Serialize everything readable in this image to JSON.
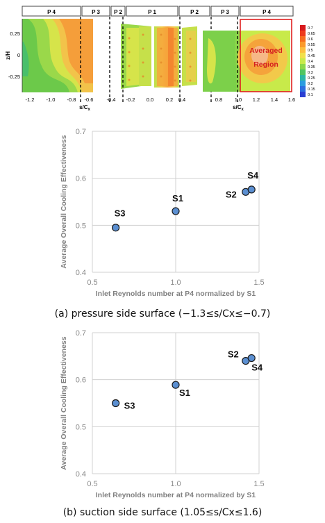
{
  "contour": {
    "passage_labels": [
      "P 4",
      "P 3",
      "P 2",
      "P 1",
      "P 2",
      "P 3",
      "P 4"
    ],
    "ylabel": "z/H",
    "xlabel": "s/C",
    "xlabel_sub": "x",
    "yticks": [
      "0.25",
      "0",
      "-0.25"
    ],
    "xticks_left": [
      "-1.2",
      "-1.0",
      "-0.8",
      "-0.6"
    ],
    "xticks_mid": [
      "-0.4",
      "-0.2",
      "0.0",
      "0.2",
      "0.4"
    ],
    "xticks_right": [
      "0.8",
      "1.0",
      "1.2",
      "1.4",
      "1.6"
    ],
    "region_label_line1": "Averaged",
    "region_label_line2": "Region",
    "colorbar_ticks": [
      "0.7",
      "0.65",
      "0.6",
      "0.55",
      "0.5",
      "0.45",
      "0.4",
      "0.35",
      "0.3",
      "0.25",
      "0.2",
      "0.15",
      "0.1"
    ],
    "colorbar_colors": [
      "#d7191c",
      "#ee3b1c",
      "#f76d1f",
      "#fb9a2c",
      "#fdbf3e",
      "#f1e04a",
      "#c8ea4a",
      "#8cd84a",
      "#4fc560",
      "#2bb6a4",
      "#2a9ce0",
      "#2c6fe0",
      "#2a3fd2"
    ]
  },
  "chart_data": [
    {
      "type": "scatter",
      "xlabel": "Inlet Reynolds number at P4 normalized by S1",
      "ylabel": "Average Overall Cooling Effectiveness",
      "xlim": [
        0.5,
        1.5
      ],
      "ylim": [
        0.4,
        0.7
      ],
      "xticks": [
        "0.5",
        "1.0",
        "1.5"
      ],
      "yticks": [
        "0.4",
        "0.5",
        "0.6",
        "0.7"
      ],
      "grid": "major",
      "points": [
        {
          "label": "S3",
          "x": 0.64,
          "y": 0.495
        },
        {
          "label": "S1",
          "x": 1.0,
          "y": 0.53
        },
        {
          "label": "S2",
          "x": 1.42,
          "y": 0.571
        },
        {
          "label": "S4",
          "x": 1.455,
          "y": 0.576
        }
      ],
      "caption": "(a) pressure side surface (−1.3≤s/Cx≤−0.7)"
    },
    {
      "type": "scatter",
      "xlabel": "Inlet Reynolds number at P4 normalized by S1",
      "ylabel": "Average Overall Cooling Effectiveness",
      "xlim": [
        0.5,
        1.5
      ],
      "ylim": [
        0.4,
        0.7
      ],
      "xticks": [
        "0.5",
        "1.0",
        "1.5"
      ],
      "yticks": [
        "0.4",
        "0.5",
        "0.6",
        "0.7"
      ],
      "grid": "major",
      "points": [
        {
          "label": "S3",
          "x": 0.64,
          "y": 0.55
        },
        {
          "label": "S1",
          "x": 1.0,
          "y": 0.589
        },
        {
          "label": "S2",
          "x": 1.42,
          "y": 0.64
        },
        {
          "label": "S4",
          "x": 1.455,
          "y": 0.646
        }
      ],
      "caption": "(b) suction side surface (1.05≤s/Cx≤1.6)"
    }
  ]
}
